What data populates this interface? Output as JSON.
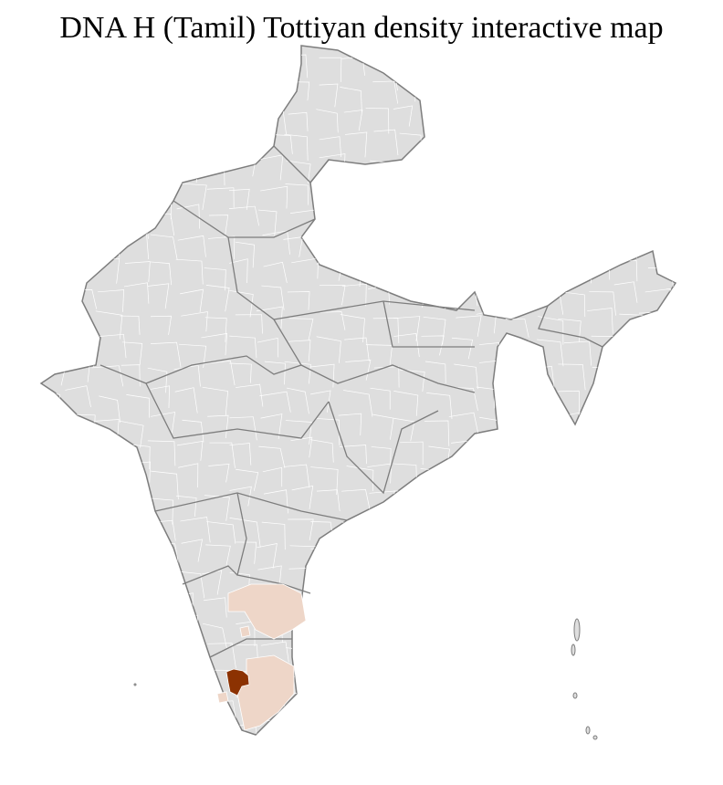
{
  "title": "DNA H (Tamil) Tottiyan density interactive map",
  "colors": {
    "base_fill": "#dedede",
    "district_border": "#ffffff",
    "state_border": "#7d7d7d",
    "low_density": "#eed6c8",
    "high_density": "#8c3202"
  },
  "legend": null,
  "regions": [
    {
      "name": "andhra-rayalaseema-districts",
      "density": "low"
    },
    {
      "name": "tamil-nadu-districts",
      "density": "low"
    },
    {
      "name": "kerala-district",
      "density": "low"
    },
    {
      "name": "coimbatore-tiruppur-districts",
      "density": "high"
    }
  ]
}
